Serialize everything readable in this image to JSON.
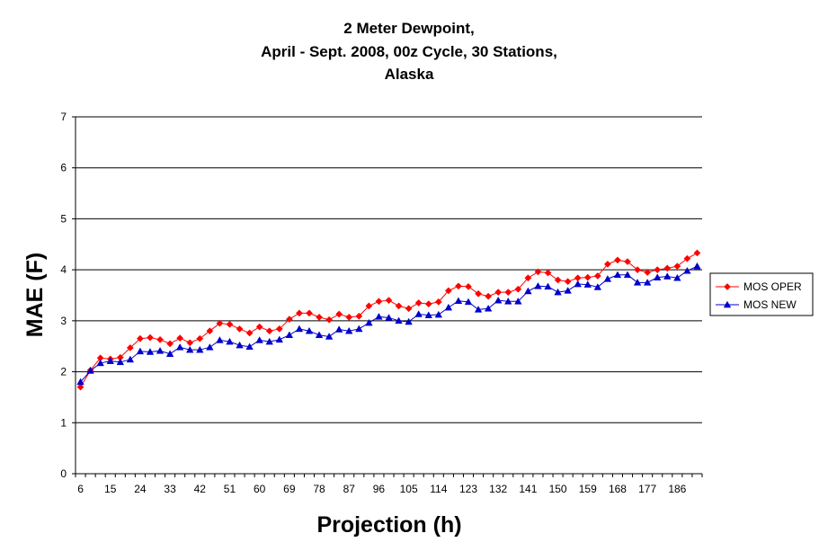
{
  "chart_data": {
    "type": "line",
    "title_lines": [
      "2 Meter Dewpoint,",
      "April - Sept. 2008, 00z Cycle, 30 Stations,",
      "Alaska"
    ],
    "xlabel": "Projection (h)",
    "ylabel": "MAE (F)",
    "ylim": [
      0,
      7
    ],
    "yticks": [
      "0",
      "1",
      "2",
      "3",
      "4",
      "5",
      "6",
      "7"
    ],
    "xtick_labels": [
      "6",
      "15",
      "24",
      "33",
      "42",
      "51",
      "60",
      "69",
      "78",
      "87",
      "96",
      "105",
      "114",
      "123",
      "132",
      "141",
      "150",
      "159",
      "168",
      "177",
      "186"
    ],
    "x": [
      6,
      9,
      12,
      15,
      18,
      21,
      24,
      27,
      30,
      33,
      36,
      39,
      42,
      45,
      48,
      51,
      54,
      57,
      60,
      63,
      66,
      69,
      72,
      75,
      78,
      81,
      84,
      87,
      90,
      93,
      96,
      99,
      102,
      105,
      108,
      111,
      114,
      117,
      120,
      123,
      126,
      129,
      132,
      135,
      138,
      141,
      144,
      147,
      150,
      153,
      156,
      159,
      162,
      165,
      168,
      171,
      174,
      177,
      180,
      183,
      186,
      189,
      192
    ],
    "grid": "horizontal",
    "legend_position": "right",
    "series": [
      {
        "name": "MOS OPER",
        "color": "#ff0000",
        "marker": "diamond",
        "values": [
          1.7,
          2.03,
          2.27,
          2.25,
          2.28,
          2.47,
          2.65,
          2.67,
          2.63,
          2.55,
          2.66,
          2.57,
          2.65,
          2.8,
          2.95,
          2.93,
          2.84,
          2.76,
          2.88,
          2.8,
          2.84,
          3.03,
          3.15,
          3.15,
          3.07,
          3.02,
          3.13,
          3.07,
          3.09,
          3.29,
          3.38,
          3.4,
          3.29,
          3.24,
          3.35,
          3.33,
          3.37,
          3.59,
          3.68,
          3.67,
          3.53,
          3.48,
          3.56,
          3.56,
          3.62,
          3.84,
          3.96,
          3.94,
          3.8,
          3.77,
          3.84,
          3.85,
          3.88,
          4.11,
          4.19,
          4.16,
          4.0,
          3.95,
          4.0,
          4.03,
          4.07,
          4.22,
          4.33
        ]
      },
      {
        "name": "MOS NEW",
        "color": "#0000cc",
        "marker": "triangle",
        "values": [
          1.8,
          2.02,
          2.17,
          2.21,
          2.19,
          2.24,
          2.4,
          2.39,
          2.41,
          2.35,
          2.48,
          2.43,
          2.43,
          2.48,
          2.62,
          2.59,
          2.52,
          2.49,
          2.62,
          2.59,
          2.63,
          2.72,
          2.84,
          2.8,
          2.72,
          2.69,
          2.83,
          2.8,
          2.84,
          2.96,
          3.08,
          3.06,
          3.0,
          2.98,
          3.13,
          3.11,
          3.12,
          3.26,
          3.39,
          3.37,
          3.22,
          3.24,
          3.4,
          3.38,
          3.38,
          3.58,
          3.68,
          3.67,
          3.56,
          3.59,
          3.72,
          3.71,
          3.66,
          3.82,
          3.9,
          3.9,
          3.75,
          3.75,
          3.85,
          3.87,
          3.84,
          3.98,
          4.07
        ]
      }
    ]
  }
}
